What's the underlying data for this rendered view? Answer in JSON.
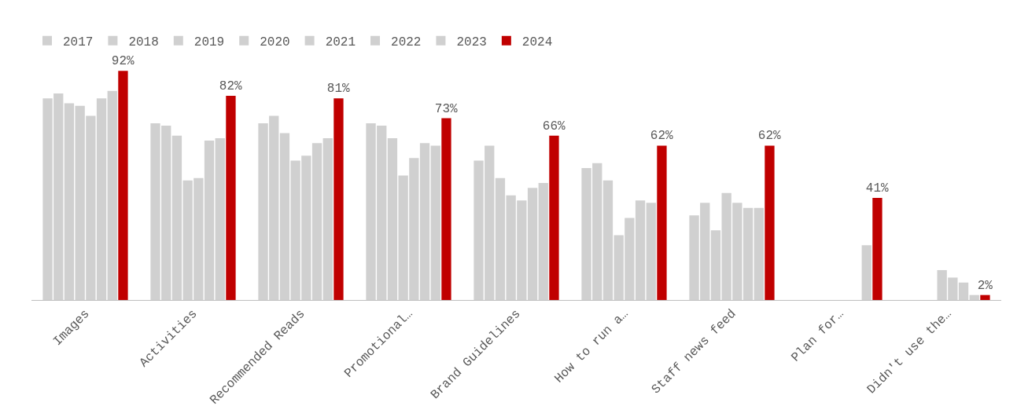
{
  "chart_data": {
    "type": "bar",
    "categories": [
      "Images",
      "Activities",
      "Recommended Reads",
      "Promotional…",
      "Brand Guidelines",
      "How to run a…",
      "Staff news feed",
      "Plan for…",
      "Didn't use the…"
    ],
    "series": [
      {
        "name": "2017",
        "color": "#d0d0d0",
        "values": [
          81,
          71,
          71,
          71,
          56,
          53,
          34,
          null,
          null
        ]
      },
      {
        "name": "2018",
        "color": "#d0d0d0",
        "values": [
          83,
          70,
          74,
          70,
          62,
          55,
          39,
          null,
          null
        ]
      },
      {
        "name": "2019",
        "color": "#d0d0d0",
        "values": [
          79,
          66,
          67,
          65,
          49,
          48,
          28,
          null,
          null
        ]
      },
      {
        "name": "2020",
        "color": "#d0d0d0",
        "values": [
          78,
          48,
          56,
          50,
          42,
          26,
          43,
          null,
          12
        ]
      },
      {
        "name": "2021",
        "color": "#d0d0d0",
        "values": [
          74,
          49,
          58,
          57,
          40,
          33,
          39,
          null,
          9
        ]
      },
      {
        "name": "2022",
        "color": "#d0d0d0",
        "values": [
          81,
          64,
          63,
          63,
          45,
          40,
          37,
          null,
          7
        ]
      },
      {
        "name": "2023",
        "color": "#d0d0d0",
        "values": [
          84,
          65,
          65,
          62,
          47,
          39,
          37,
          22,
          2
        ]
      },
      {
        "name": "2024",
        "color": "#c00000",
        "values": [
          92,
          82,
          81,
          73,
          66,
          62,
          62,
          41,
          2
        ],
        "value_labels": [
          "92%",
          "82%",
          "81%",
          "73%",
          "66%",
          "62%",
          "62%",
          "41%",
          "2%"
        ]
      }
    ],
    "tick_labels": "x",
    "legend": "top left"
  }
}
